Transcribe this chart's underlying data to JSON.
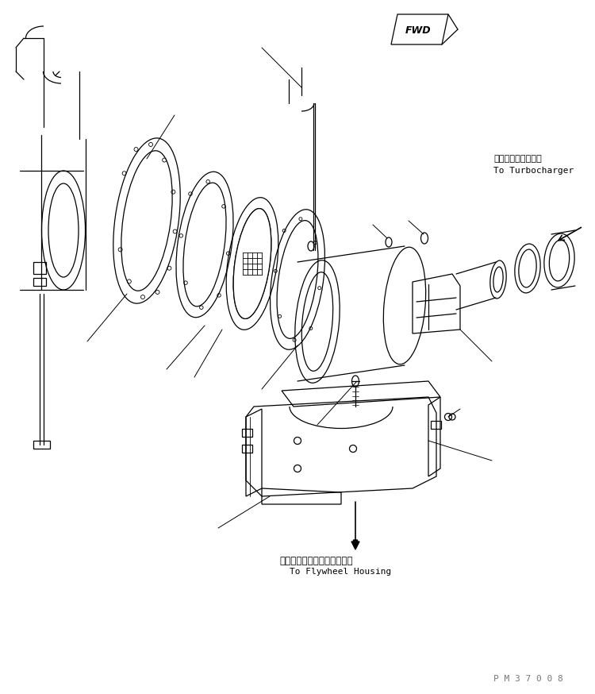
{
  "background_color": "#ffffff",
  "line_color": "#000000",
  "label_turbo_jp": "ターボチャージャヘ",
  "label_turbo_en": "To Turbocharger",
  "label_flywheel_jp": "フライホイールハウジングヘ",
  "label_flywheel_en": "To Flywheel Housing",
  "watermark": "P M 3 7 0 0 8",
  "fig_width": 7.5,
  "fig_height": 8.74,
  "dpi": 100
}
